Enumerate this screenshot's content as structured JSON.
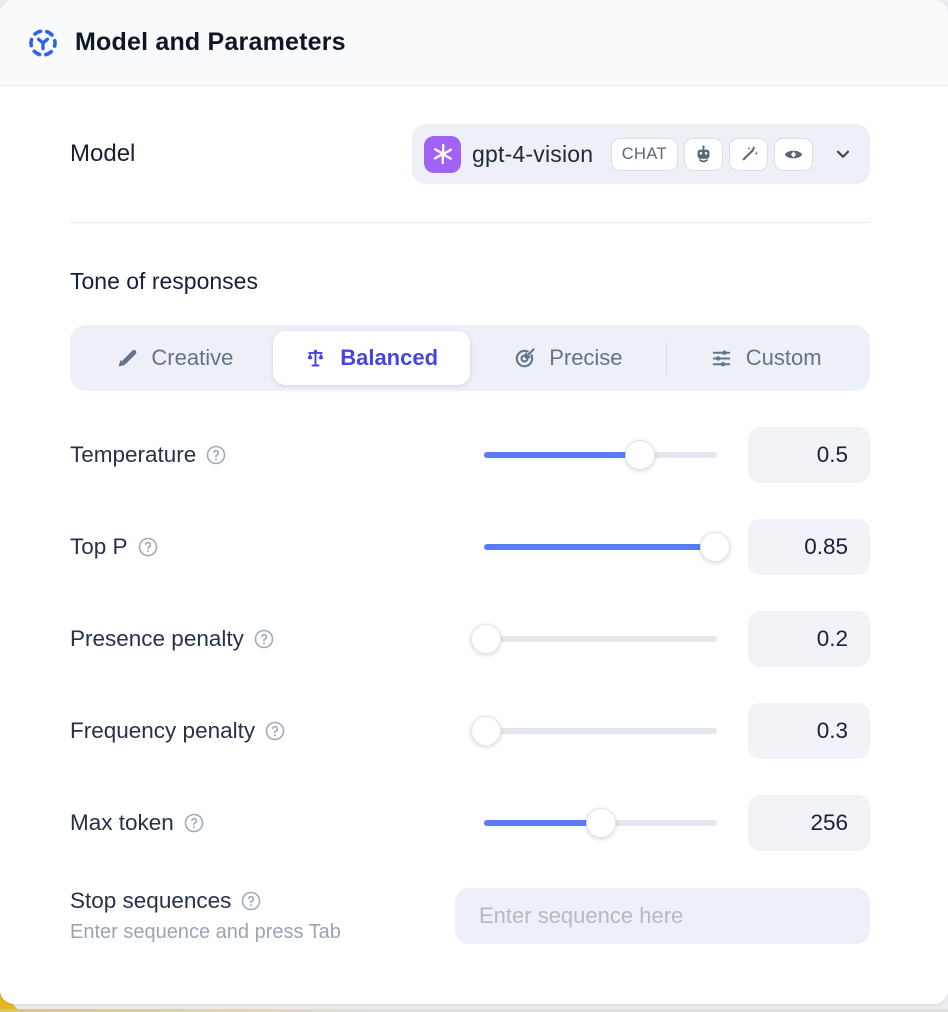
{
  "header": {
    "title": "Model and Parameters",
    "icon": "model-hub-icon"
  },
  "model": {
    "label": "Model",
    "selected_name": "gpt-4-vision",
    "type_badge": "CHAT",
    "capability_icons": [
      "robot-icon",
      "magic-wand-icon",
      "vision-eye-icon"
    ],
    "brand_color": "#a362f6"
  },
  "tone": {
    "heading": "Tone of responses",
    "options": [
      {
        "label": "Creative",
        "icon": "paintbrush-icon",
        "selected": false
      },
      {
        "label": "Balanced",
        "icon": "balance-scale-icon",
        "selected": true
      },
      {
        "label": "Precise",
        "icon": "target-arrow-icon",
        "selected": false
      },
      {
        "label": "Custom",
        "icon": "sliders-icon",
        "selected": false
      }
    ]
  },
  "parameters": [
    {
      "label": "Temperature",
      "value": "0.5",
      "fill_percent": 67
    },
    {
      "label": "Top P",
      "value": "0.85",
      "fill_percent": 99
    },
    {
      "label": "Presence penalty",
      "value": "0.2",
      "fill_percent": 1
    },
    {
      "label": "Frequency penalty",
      "value": "0.3",
      "fill_percent": 1
    },
    {
      "label": "Max token",
      "value": "256",
      "fill_percent": 50
    }
  ],
  "stop_sequences": {
    "label": "Stop sequences",
    "helper": "Enter sequence and press Tab",
    "placeholder": "Enter sequence here"
  },
  "colors": {
    "accent_blue": "#5b7cfa",
    "selected_indigo": "#4645e2",
    "header_icon_blue": "#2f62e9",
    "brand_purple": "#a362f6"
  }
}
